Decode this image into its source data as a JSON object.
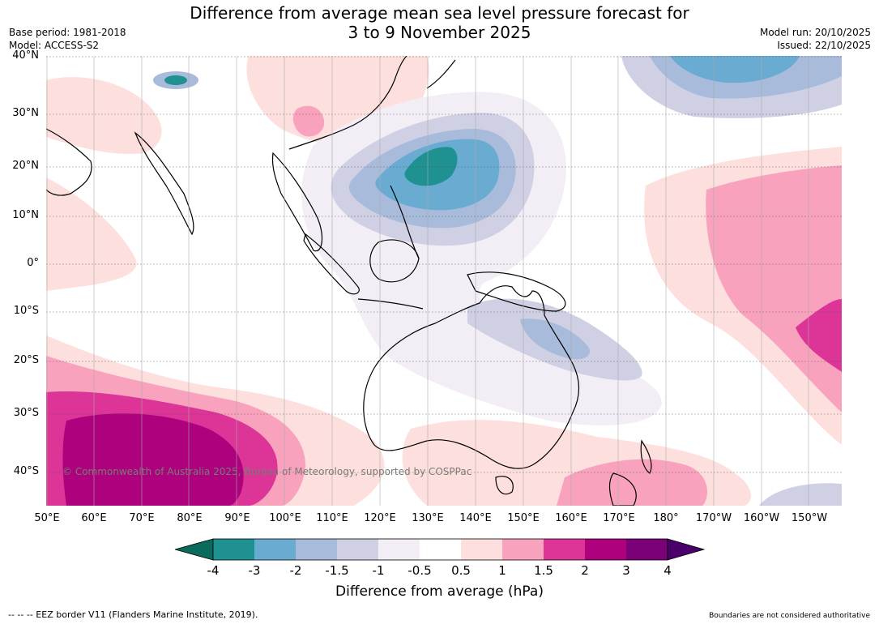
{
  "header": {
    "title_line1": "Difference from average mean sea level pressure forecast for",
    "title_line2": "3 to 9 November 2025",
    "base_period": "Base period: 1981-2018",
    "model": "Model: ACCESS-S2",
    "model_run": "Model run: 20/10/2025",
    "issued": "Issued: 22/10/2025"
  },
  "map": {
    "lat_labels": [
      "40°N",
      "30°N",
      "20°N",
      "10°N",
      "0°",
      "10°S",
      "20°S",
      "30°S",
      "40°S"
    ],
    "lon_labels": [
      "50°E",
      "60°E",
      "70°E",
      "80°E",
      "90°E",
      "100°E",
      "110°E",
      "120°E",
      "130°E",
      "140°E",
      "150°E",
      "160°E",
      "170°E",
      "180°",
      "170°W",
      "160°W",
      "150°W"
    ],
    "copyright": "© Commonwealth of Australia 2025, Bureau of Meteorology, supported by COSPPac"
  },
  "colorbar": {
    "tick_labels": [
      "-4",
      "-3",
      "-2",
      "-1.5",
      "-1",
      "-0.5",
      "0.5",
      "1",
      "1.5",
      "2",
      "3",
      "4"
    ],
    "label": "Difference from average (hPa)",
    "colors": {
      "below_min": "#0a6b5c",
      "bins": [
        "#1e9190",
        "#6aabd1",
        "#a8bbdb",
        "#d0d0e4",
        "#f3eef6",
        "#ffffff",
        "#fde0dd",
        "#f9a2bd",
        "#dd3497",
        "#ae017e",
        "#7a0177"
      ],
      "above_max": "#49006a"
    }
  },
  "footer": {
    "eez_note": "--  --  -- EEZ border V11 (Flanders Marine Institute, 2019).",
    "disclaimer": "Boundaries are not considered authoritative"
  }
}
